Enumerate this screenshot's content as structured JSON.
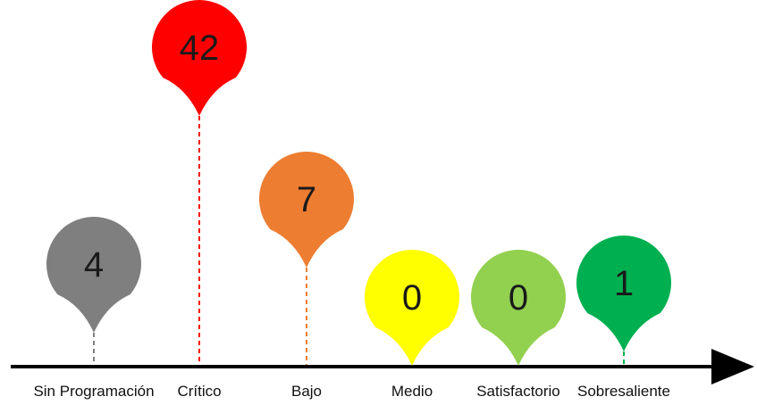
{
  "chart_data": {
    "type": "bar",
    "categories": [
      "Sin Programación",
      "Crítico",
      "Bajo",
      "Medio",
      "Satisfactorio",
      "Sobresaliente"
    ],
    "values": [
      4,
      42,
      7,
      0,
      0,
      1
    ],
    "value_labels": [
      "4",
      "42",
      "7",
      "0",
      "0",
      "1"
    ],
    "colors": [
      "#7f7f7f",
      "#ff0000",
      "#ed7d31",
      "#ffff00",
      "#92d050",
      "#00b050"
    ],
    "title": "",
    "xlabel": "",
    "ylabel": "",
    "grid": false,
    "legend": "none"
  }
}
